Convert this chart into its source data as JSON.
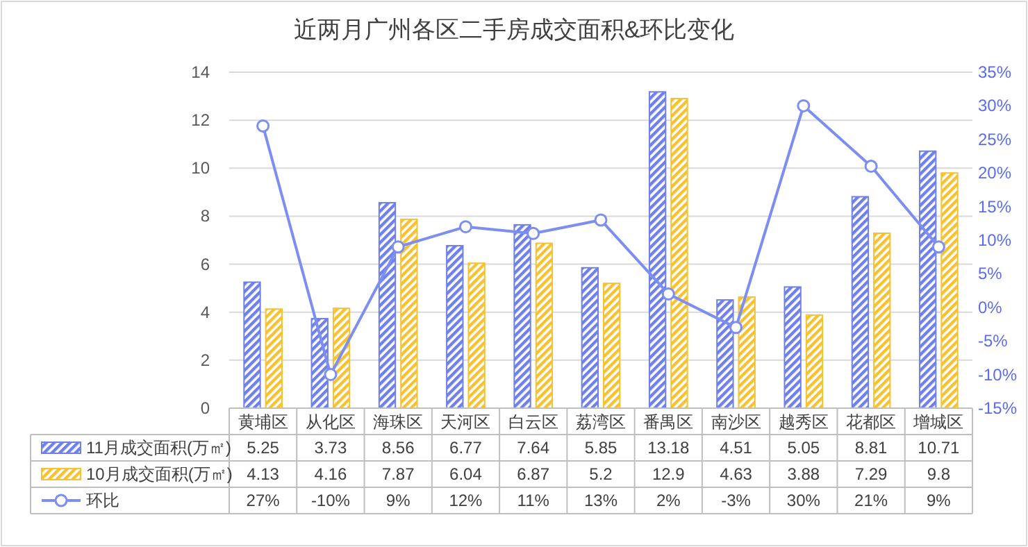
{
  "chart_data": {
    "type": "bar",
    "title": "近两月广州各区二手房成交面积&环比变化",
    "categories": [
      "黄埔区",
      "从化区",
      "海珠区",
      "天河区",
      "白云区",
      "荔湾区",
      "番禺区",
      "南沙区",
      "越秀区",
      "花都区",
      "增城区"
    ],
    "series": [
      {
        "name": "11月成交面积(万㎡)",
        "color": "#6f80e8",
        "values": [
          5.25,
          3.73,
          8.56,
          6.77,
          7.64,
          5.85,
          13.18,
          4.51,
          5.05,
          8.81,
          10.71
        ],
        "value_labels": [
          "5.25",
          "3.73",
          "8.56",
          "6.77",
          "7.64",
          "5.85",
          "13.18",
          "4.51",
          "5.05",
          "8.81",
          "10.71"
        ]
      },
      {
        "name": "10月成交面积(万㎡)",
        "color": "#f5c232",
        "values": [
          4.13,
          4.16,
          7.87,
          6.04,
          6.87,
          5.2,
          12.9,
          4.63,
          3.88,
          7.29,
          9.8
        ],
        "value_labels": [
          "4.13",
          "4.16",
          "7.87",
          "6.04",
          "6.87",
          "5.2",
          "12.9",
          "4.63",
          "3.88",
          "7.29",
          "9.8"
        ]
      },
      {
        "name": "环比",
        "type": "line",
        "axis": "y2",
        "color": "#7d8ef2",
        "values": [
          27,
          -10,
          9,
          12,
          11,
          13,
          2,
          -3,
          30,
          21,
          9
        ],
        "value_labels": [
          "27%",
          "-10%",
          "9%",
          "12%",
          "11%",
          "13%",
          "2%",
          "-3%",
          "30%",
          "21%",
          "9%"
        ]
      }
    ],
    "ylim": [
      0,
      14
    ],
    "yticks": [
      0,
      2,
      4,
      6,
      8,
      10,
      12,
      14
    ],
    "y2lim": [
      -15,
      35
    ],
    "y2ticks": [
      {
        "value": -15,
        "label": "-15%"
      },
      {
        "value": -10,
        "label": "-10%"
      },
      {
        "value": -5,
        "label": "-5%"
      },
      {
        "value": 0,
        "label": "0%"
      },
      {
        "value": 5,
        "label": "5%"
      },
      {
        "value": 10,
        "label": "10%"
      },
      {
        "value": 15,
        "label": "15%"
      },
      {
        "value": 20,
        "label": "20%"
      },
      {
        "value": 25,
        "label": "25%"
      },
      {
        "value": 30,
        "label": "30%"
      },
      {
        "value": 35,
        "label": "35%"
      }
    ],
    "grid": "y",
    "marker": "circle",
    "legend": "bottom"
  }
}
